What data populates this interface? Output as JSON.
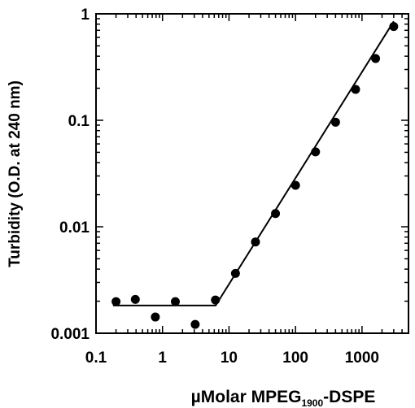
{
  "chart_data": {
    "type": "scatter",
    "x_scale": "log",
    "y_scale": "log",
    "xlim": [
      0.1,
      5000
    ],
    "ylim": [
      0.001,
      1
    ],
    "x_ticks": [
      0.1,
      1,
      10,
      100,
      1000
    ],
    "x_tick_labels": [
      "0.1",
      "1",
      "10",
      "100",
      "1000"
    ],
    "y_ticks": [
      0.001,
      0.01,
      0.1,
      1
    ],
    "y_tick_labels": [
      "0.001",
      "0.01",
      "0.1",
      "1"
    ],
    "xlabel": {
      "prefix": "µMolar MPEG",
      "subscript": "1900",
      "suffix": "-DSPE"
    },
    "ylabel": "Turbidity (O.D. at 240 nm)",
    "grid": false,
    "marker_color": "#000000",
    "points": [
      {
        "x": 0.2,
        "y": 0.00198
      },
      {
        "x": 0.39,
        "y": 0.00208
      },
      {
        "x": 0.78,
        "y": 0.00142
      },
      {
        "x": 1.56,
        "y": 0.00198
      },
      {
        "x": 3.1,
        "y": 0.00121
      },
      {
        "x": 6.25,
        "y": 0.00205
      },
      {
        "x": 12.5,
        "y": 0.00365
      },
      {
        "x": 25,
        "y": 0.0072
      },
      {
        "x": 50,
        "y": 0.0133
      },
      {
        "x": 100,
        "y": 0.0245
      },
      {
        "x": 200,
        "y": 0.0505
      },
      {
        "x": 400,
        "y": 0.096
      },
      {
        "x": 800,
        "y": 0.195
      },
      {
        "x": 1600,
        "y": 0.38
      },
      {
        "x": 3000,
        "y": 0.76
      }
    ],
    "fit_line": [
      {
        "x": 0.18,
        "y": 0.00182
      },
      {
        "x": 6.3,
        "y": 0.00182
      },
      {
        "x": 3000,
        "y": 0.85
      }
    ]
  }
}
